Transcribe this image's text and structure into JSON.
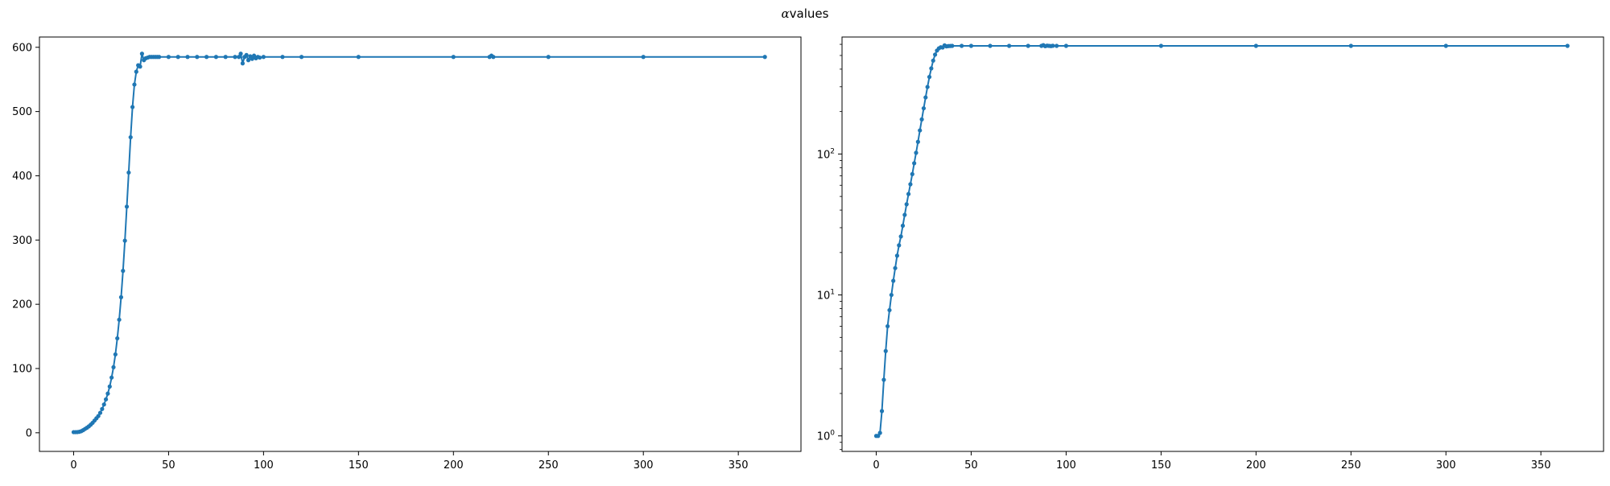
{
  "figure": {
    "title_symbol": "α",
    "title_text": "values"
  },
  "colors": {
    "series": "#1f77b4",
    "axes": "#000000",
    "background": "#ffffff"
  },
  "chart_data": [
    {
      "type": "line",
      "marker": "dot",
      "yscale": "linear",
      "title": "",
      "xlabel": "",
      "ylabel": "",
      "xlim": [
        -18,
        383
      ],
      "ylim": [
        -29,
        616
      ],
      "xticks": [
        0,
        50,
        100,
        150,
        200,
        250,
        300,
        350
      ],
      "yticks": [
        0,
        100,
        200,
        300,
        400,
        500,
        600
      ],
      "grid": false,
      "legend": null,
      "series": [
        {
          "x": [
            0,
            1,
            2,
            3,
            4,
            5,
            6,
            7,
            8,
            9,
            10,
            11,
            12,
            13,
            14,
            15,
            16,
            17,
            18,
            19,
            20,
            21,
            22,
            23,
            24,
            25,
            26,
            27,
            28,
            29,
            30,
            31,
            32,
            33,
            34,
            35,
            36,
            37,
            38,
            39,
            40,
            41,
            42,
            43,
            44,
            45,
            50,
            55,
            60,
            65,
            70,
            75,
            80,
            85,
            87,
            88,
            89,
            90,
            91,
            92,
            93,
            94,
            95,
            96,
            97,
            98,
            100,
            110,
            120,
            150,
            200,
            219,
            220,
            221,
            250,
            300,
            364
          ],
          "y": [
            1,
            1,
            1.1,
            1.5,
            2.5,
            4,
            6,
            7.8,
            10,
            12.6,
            15.5,
            19,
            22.5,
            26,
            31,
            37,
            44,
            52,
            61,
            72,
            86,
            102,
            122,
            147,
            176,
            211,
            252,
            299,
            352,
            405,
            460,
            507,
            542,
            562,
            572,
            570,
            590,
            580,
            583,
            584,
            585,
            585,
            585,
            585,
            585,
            585,
            585,
            585,
            585,
            585,
            585,
            585,
            585,
            585,
            585,
            590,
            575,
            585,
            588,
            580,
            586,
            582,
            587,
            583,
            585,
            584,
            585,
            585,
            585,
            585,
            585,
            585,
            587,
            585,
            585,
            585,
            585
          ]
        }
      ]
    },
    {
      "type": "line",
      "marker": "dot",
      "yscale": "log",
      "title": "",
      "xlabel": "",
      "ylabel": "",
      "xlim": [
        -18,
        383
      ],
      "ylim_log10": [
        -0.11,
        2.83
      ],
      "xticks": [
        0,
        50,
        100,
        150,
        200,
        250,
        300,
        350
      ],
      "ytick_labels": [
        "10",
        "10",
        "10"
      ],
      "ytick_exponents": [
        "0",
        "1",
        "2"
      ],
      "grid": false,
      "legend": null,
      "series": [
        {
          "x": [
            0,
            1,
            2,
            3,
            4,
            5,
            6,
            7,
            8,
            9,
            10,
            11,
            12,
            13,
            14,
            15,
            16,
            17,
            18,
            19,
            20,
            21,
            22,
            23,
            24,
            25,
            26,
            27,
            28,
            29,
            30,
            31,
            32,
            33,
            34,
            35,
            36,
            37,
            38,
            39,
            40,
            45,
            50,
            60,
            70,
            80,
            87,
            88,
            89,
            90,
            91,
            92,
            93,
            95,
            100,
            150,
            200,
            250,
            300,
            364
          ],
          "y": [
            1,
            1,
            1.05,
            1.5,
            2.5,
            4,
            6,
            7.8,
            10,
            12.6,
            15.5,
            19,
            22.5,
            26,
            31,
            37,
            44,
            52,
            61,
            72,
            86,
            102,
            122,
            147,
            176,
            211,
            252,
            299,
            352,
            405,
            460,
            507,
            542,
            562,
            572,
            570,
            590,
            580,
            583,
            584,
            585,
            585,
            585,
            585,
            585,
            585,
            585,
            592,
            582,
            587,
            585,
            583,
            586,
            585,
            585,
            585,
            585,
            585,
            585,
            585
          ]
        }
      ]
    }
  ]
}
